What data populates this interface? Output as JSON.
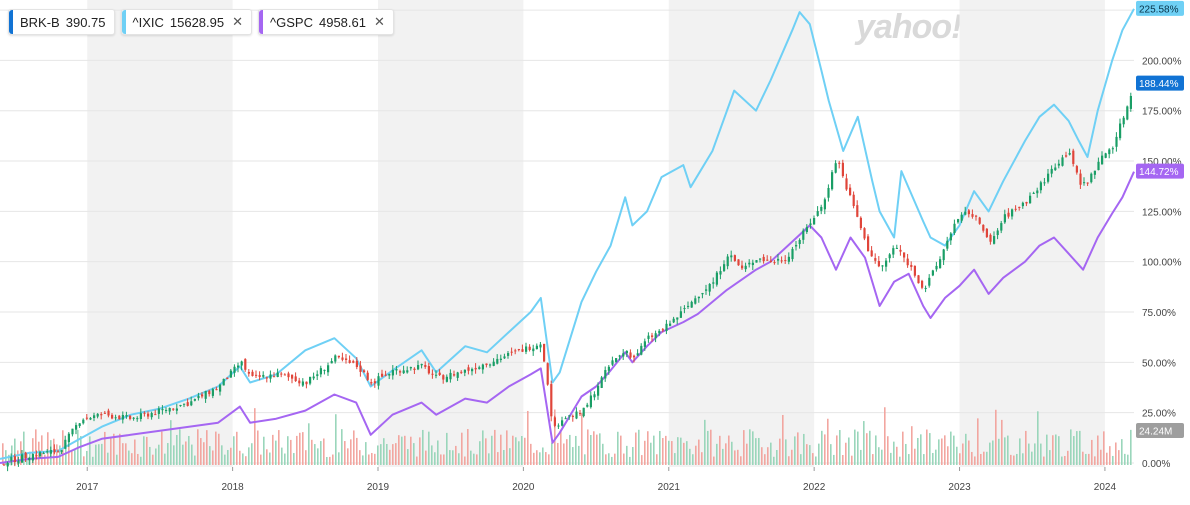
{
  "legend": [
    {
      "symbol": "BRK-B",
      "value": "390.75",
      "color": "#1173d4",
      "closable": false
    },
    {
      "symbol": "^IXIC",
      "value": "15628.95",
      "color": "#6fd0f5",
      "closable": true
    },
    {
      "symbol": "^GSPC",
      "value": "4958.61",
      "color": "#a566f2",
      "closable": true
    }
  ],
  "close_glyph": "✕",
  "brand": "yahoo!finance",
  "chart_data": {
    "type": "line",
    "x_labels": [
      "2017",
      "2018",
      "2019",
      "2020",
      "2021",
      "2022",
      "2023",
      "2024"
    ],
    "y_ticks": [
      "225.00%",
      "200.00%",
      "175.00%",
      "150.00%",
      "125.00%",
      "100.00%",
      "75.00%",
      "50.00%",
      "25.00%",
      "0.00%"
    ],
    "y_range": [
      -2,
      230
    ],
    "x_range": [
      2016.4,
      2024.2
    ],
    "last_value_tags": {
      "ixic": "225.58%",
      "brk": "188.44%",
      "gspc": "144.72%",
      "volume": "24.24M"
    },
    "series": [
      {
        "name": "^IXIC",
        "color": "#6fd0f5",
        "points": [
          [
            2016.4,
            2
          ],
          [
            2016.6,
            5
          ],
          [
            2016.8,
            6
          ],
          [
            2016.95,
            12
          ],
          [
            2017.1,
            18
          ],
          [
            2017.3,
            24
          ],
          [
            2017.5,
            27
          ],
          [
            2017.7,
            32
          ],
          [
            2017.9,
            38
          ],
          [
            2018.05,
            48
          ],
          [
            2018.12,
            40
          ],
          [
            2018.3,
            44
          ],
          [
            2018.5,
            56
          ],
          [
            2018.7,
            62
          ],
          [
            2018.85,
            52
          ],
          [
            2018.95,
            38
          ],
          [
            2019.1,
            46
          ],
          [
            2019.3,
            56
          ],
          [
            2019.4,
            45
          ],
          [
            2019.6,
            58
          ],
          [
            2019.75,
            55
          ],
          [
            2019.9,
            65
          ],
          [
            2020.05,
            75
          ],
          [
            2020.12,
            82
          ],
          [
            2020.2,
            40
          ],
          [
            2020.25,
            45
          ],
          [
            2020.4,
            80
          ],
          [
            2020.5,
            95
          ],
          [
            2020.6,
            108
          ],
          [
            2020.7,
            132
          ],
          [
            2020.75,
            118
          ],
          [
            2020.85,
            125
          ],
          [
            2020.95,
            142
          ],
          [
            2021.1,
            148
          ],
          [
            2021.15,
            137
          ],
          [
            2021.3,
            155
          ],
          [
            2021.45,
            185
          ],
          [
            2021.6,
            175
          ],
          [
            2021.7,
            190
          ],
          [
            2021.85,
            215
          ],
          [
            2021.9,
            224
          ],
          [
            2021.97,
            218
          ],
          [
            2022.05,
            195
          ],
          [
            2022.1,
            180
          ],
          [
            2022.2,
            155
          ],
          [
            2022.3,
            172
          ],
          [
            2022.4,
            140
          ],
          [
            2022.45,
            125
          ],
          [
            2022.55,
            112
          ],
          [
            2022.6,
            145
          ],
          [
            2022.75,
            120
          ],
          [
            2022.8,
            112
          ],
          [
            2022.9,
            108
          ],
          [
            2023.0,
            118
          ],
          [
            2023.1,
            135
          ],
          [
            2023.2,
            125
          ],
          [
            2023.3,
            140
          ],
          [
            2023.45,
            160
          ],
          [
            2023.55,
            172
          ],
          [
            2023.65,
            178
          ],
          [
            2023.75,
            170
          ],
          [
            2023.82,
            160
          ],
          [
            2023.88,
            152
          ],
          [
            2023.95,
            175
          ],
          [
            2024.05,
            200
          ],
          [
            2024.12,
            215
          ],
          [
            2024.2,
            225.58
          ]
        ]
      },
      {
        "name": "^GSPC",
        "color": "#a566f2",
        "points": [
          [
            2016.4,
            0
          ],
          [
            2016.6,
            2
          ],
          [
            2016.8,
            3
          ],
          [
            2016.95,
            8
          ],
          [
            2017.1,
            12
          ],
          [
            2017.3,
            14
          ],
          [
            2017.5,
            16
          ],
          [
            2017.7,
            18
          ],
          [
            2017.9,
            20
          ],
          [
            2018.05,
            28
          ],
          [
            2018.12,
            20
          ],
          [
            2018.3,
            22
          ],
          [
            2018.5,
            26
          ],
          [
            2018.7,
            34
          ],
          [
            2018.85,
            30
          ],
          [
            2018.95,
            14
          ],
          [
            2019.1,
            24
          ],
          [
            2019.3,
            30
          ],
          [
            2019.4,
            24
          ],
          [
            2019.6,
            32
          ],
          [
            2019.75,
            30
          ],
          [
            2019.9,
            38
          ],
          [
            2020.05,
            44
          ],
          [
            2020.12,
            47
          ],
          [
            2020.2,
            10
          ],
          [
            2020.25,
            15
          ],
          [
            2020.4,
            33
          ],
          [
            2020.5,
            38
          ],
          [
            2020.6,
            46
          ],
          [
            2020.7,
            55
          ],
          [
            2020.75,
            50
          ],
          [
            2020.85,
            58
          ],
          [
            2020.95,
            65
          ],
          [
            2021.1,
            70
          ],
          [
            2021.2,
            74
          ],
          [
            2021.4,
            86
          ],
          [
            2021.6,
            96
          ],
          [
            2021.7,
            100
          ],
          [
            2021.85,
            110
          ],
          [
            2021.97,
            118
          ],
          [
            2022.05,
            112
          ],
          [
            2022.15,
            96
          ],
          [
            2022.25,
            112
          ],
          [
            2022.35,
            102
          ],
          [
            2022.45,
            78
          ],
          [
            2022.55,
            90
          ],
          [
            2022.65,
            94
          ],
          [
            2022.75,
            78
          ],
          [
            2022.8,
            72
          ],
          [
            2022.9,
            82
          ],
          [
            2023.0,
            88
          ],
          [
            2023.1,
            96
          ],
          [
            2023.2,
            84
          ],
          [
            2023.3,
            92
          ],
          [
            2023.45,
            100
          ],
          [
            2023.55,
            108
          ],
          [
            2023.65,
            112
          ],
          [
            2023.75,
            104
          ],
          [
            2023.85,
            96
          ],
          [
            2023.95,
            112
          ],
          [
            2024.05,
            124
          ],
          [
            2024.12,
            132
          ],
          [
            2024.2,
            144.72
          ]
        ]
      },
      {
        "name": "BRK-B",
        "color": "#1a9e66",
        "down_color": "#e0453a",
        "points": [
          [
            2016.4,
            0
          ],
          [
            2016.6,
            4
          ],
          [
            2016.8,
            6
          ],
          [
            2016.95,
            22
          ],
          [
            2017.1,
            24
          ],
          [
            2017.3,
            22
          ],
          [
            2017.5,
            26
          ],
          [
            2017.7,
            30
          ],
          [
            2017.9,
            38
          ],
          [
            2018.05,
            50
          ],
          [
            2018.12,
            42
          ],
          [
            2018.3,
            44
          ],
          [
            2018.5,
            40
          ],
          [
            2018.7,
            52
          ],
          [
            2018.85,
            48
          ],
          [
            2018.95,
            40
          ],
          [
            2019.1,
            46
          ],
          [
            2019.3,
            48
          ],
          [
            2019.4,
            42
          ],
          [
            2019.6,
            46
          ],
          [
            2019.75,
            50
          ],
          [
            2019.9,
            54
          ],
          [
            2020.05,
            58
          ],
          [
            2020.12,
            60
          ],
          [
            2020.2,
            16
          ],
          [
            2020.25,
            22
          ],
          [
            2020.4,
            25
          ],
          [
            2020.5,
            38
          ],
          [
            2020.6,
            50
          ],
          [
            2020.7,
            56
          ],
          [
            2020.75,
            52
          ],
          [
            2020.85,
            62
          ],
          [
            2020.95,
            66
          ],
          [
            2021.1,
            76
          ],
          [
            2021.2,
            84
          ],
          [
            2021.3,
            90
          ],
          [
            2021.4,
            104
          ],
          [
            2021.5,
            96
          ],
          [
            2021.6,
            102
          ],
          [
            2021.7,
            100
          ],
          [
            2021.8,
            102
          ],
          [
            2021.9,
            112
          ],
          [
            2021.97,
            120
          ],
          [
            2022.05,
            128
          ],
          [
            2022.15,
            152
          ],
          [
            2022.2,
            140
          ],
          [
            2022.3,
            120
          ],
          [
            2022.35,
            108
          ],
          [
            2022.45,
            96
          ],
          [
            2022.55,
            108
          ],
          [
            2022.65,
            98
          ],
          [
            2022.75,
            86
          ],
          [
            2022.85,
            100
          ],
          [
            2022.95,
            118
          ],
          [
            2023.05,
            125
          ],
          [
            2023.15,
            118
          ],
          [
            2023.2,
            108
          ],
          [
            2023.3,
            122
          ],
          [
            2023.45,
            130
          ],
          [
            2023.55,
            138
          ],
          [
            2023.65,
            148
          ],
          [
            2023.75,
            155
          ],
          [
            2023.82,
            138
          ],
          [
            2023.88,
            140
          ],
          [
            2023.95,
            150
          ],
          [
            2024.05,
            158
          ],
          [
            2024.12,
            172
          ],
          [
            2024.2,
            188.44
          ]
        ]
      }
    ]
  }
}
